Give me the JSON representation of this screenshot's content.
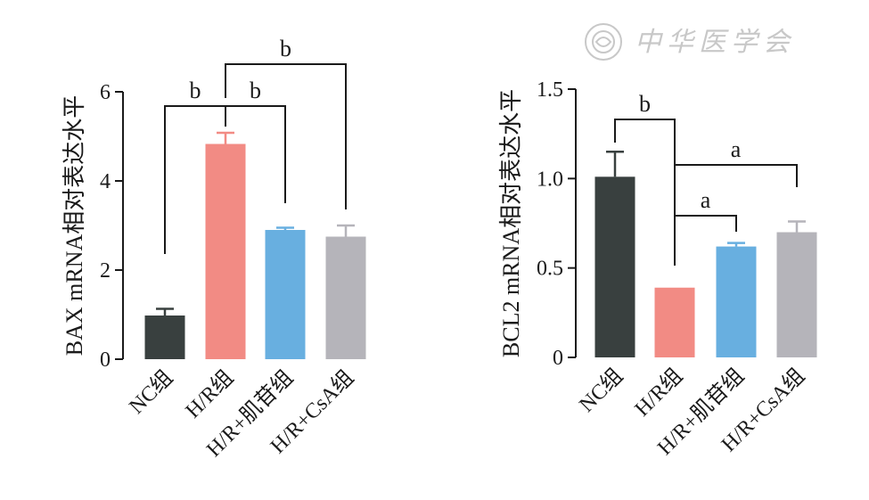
{
  "watermark": {
    "text": "中华医学会"
  },
  "colors": {
    "bar_colors": [
      "#39403f",
      "#f28b84",
      "#68afe0",
      "#b5b4ba"
    ],
    "axis": "#1a1a1a",
    "watermark": "#c8c8c8"
  },
  "chart_data": [
    {
      "type": "bar",
      "ylabel": "BAX mRNA相对表达水平",
      "ylim": [
        0,
        6
      ],
      "yticks": [
        0,
        2,
        4,
        6
      ],
      "ytick_labels": [
        "0",
        "2",
        "4",
        "6"
      ],
      "categories": [
        "NC组",
        "H/R组",
        "H/R+肌苷组",
        "H/R+CsA组"
      ],
      "values": [
        0.98,
        4.83,
        2.9,
        2.75
      ],
      "errors": [
        0.15,
        0.25,
        0.05,
        0.25
      ],
      "significance": [
        {
          "from": 0,
          "to": 1,
          "label": "b"
        },
        {
          "from": 1,
          "to": 2,
          "label": "b"
        },
        {
          "from": 1,
          "to": 3,
          "label": "b"
        }
      ]
    },
    {
      "type": "bar",
      "ylabel": "BCL2 mRNA相对表达水平",
      "ylim": [
        0,
        1.5
      ],
      "yticks": [
        0,
        0.5,
        1.0,
        1.5
      ],
      "ytick_labels": [
        "0",
        "0.5",
        "1.0",
        "1.5"
      ],
      "categories": [
        "NC组",
        "H/R组",
        "H/R+肌苷组",
        "H/R+CsA组"
      ],
      "values": [
        1.01,
        0.39,
        0.62,
        0.7
      ],
      "errors": [
        0.14,
        0.0,
        0.02,
        0.06
      ],
      "significance": [
        {
          "from": 0,
          "to": 1,
          "label": "b"
        },
        {
          "from": 1,
          "to": 2,
          "label": "a"
        },
        {
          "from": 1,
          "to": 3,
          "label": "a"
        }
      ]
    }
  ]
}
